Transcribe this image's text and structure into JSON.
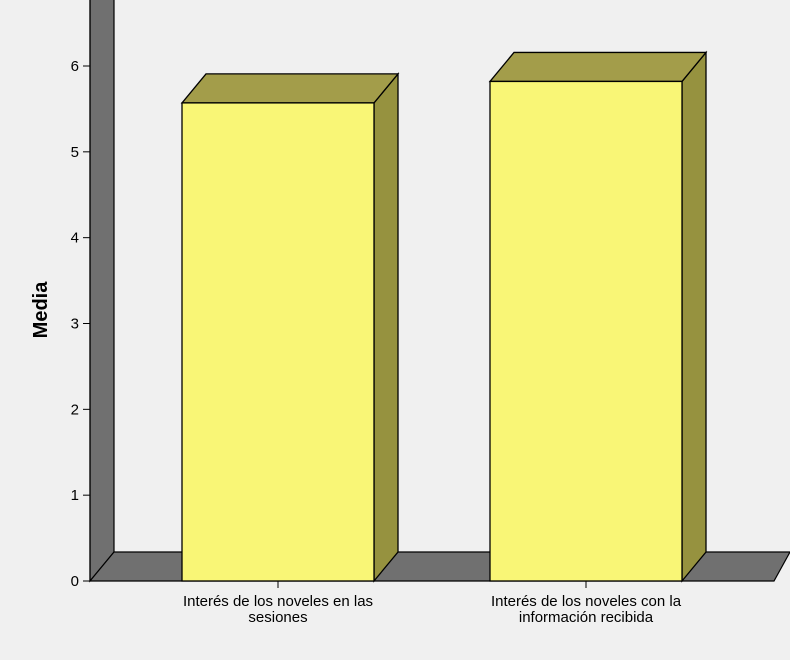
{
  "chart_data": {
    "type": "bar",
    "title": "",
    "xlabel": "",
    "ylabel": "Media",
    "ylim": [
      0,
      6.5
    ],
    "yticks": [
      0,
      1,
      2,
      3,
      4,
      5,
      6
    ],
    "categories": [
      [
        "Interés de los noveles en las",
        "sesiones"
      ],
      [
        "Interés de los noveles con la",
        "información recibida"
      ]
    ],
    "values": [
      5.57,
      5.82
    ],
    "grid": false,
    "legend": "none",
    "colors": {
      "bar_front": "#f9f676",
      "bar_top": "#a39d4a",
      "bar_side": "#96923f",
      "wall": "#f0f0f0",
      "floor": "#707070",
      "side_wall": "#707070",
      "stroke": "#000000"
    }
  }
}
